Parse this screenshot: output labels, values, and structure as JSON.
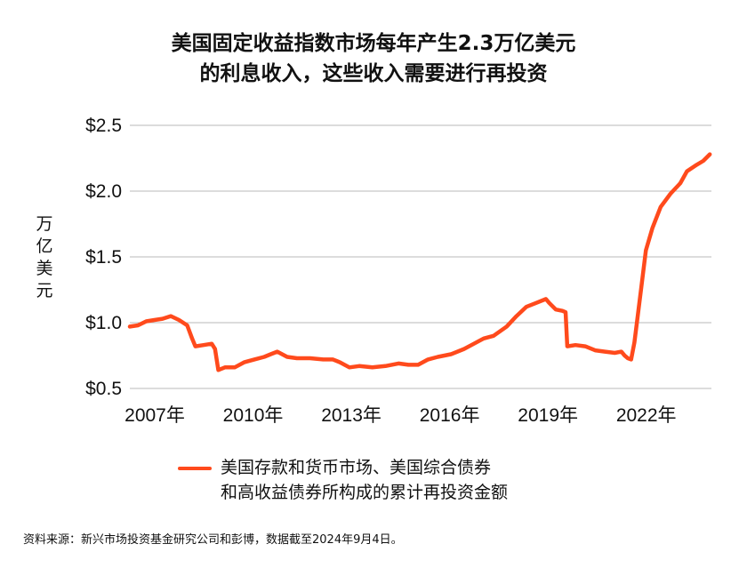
{
  "title": {
    "line1": "美国固定收益指数市场每年产生2.3万亿美元",
    "line2": "的利息收入，这些收入需要进行再投资"
  },
  "y_axis_label": [
    "万",
    "亿",
    "美",
    "元"
  ],
  "legend": {
    "line1": "美国存款和货币市场、美国综合债券",
    "line2": "和高收益债券所构成的累计再投资金额"
  },
  "source": "资料来源：新兴市场投资基金研究公司和彭博，数据截至2024年9月4日。",
  "colors": {
    "series": "#ff4a1c",
    "grid": "#b8b8b8",
    "text": "#111111"
  },
  "chart_data": {
    "type": "line",
    "title": "美国固定收益指数市场每年产生2.3万亿美元的利息收入，这些收入需要进行再投资",
    "xlabel": "",
    "ylabel": "万亿美元",
    "xlim": [
      2007.0,
      2024.75
    ],
    "ylim": [
      0.5,
      2.5
    ],
    "y_ticks": [
      0.5,
      1.0,
      1.5,
      2.0,
      2.5
    ],
    "y_tick_labels": [
      "$0.5",
      "$1.0",
      "$1.5",
      "$2.0",
      "$2.5"
    ],
    "x_ticks": [
      2007,
      2010,
      2013,
      2016,
      2019,
      2022
    ],
    "x_tick_labels": [
      "2007年",
      "2010年",
      "2013年",
      "2016年",
      "2019年",
      "2022年"
    ],
    "grid": true,
    "series": [
      {
        "name": "美国存款和货币市场、美国综合债券和高收益债券所构成的累计再投资金额",
        "x": [
          2007.0,
          2007.25,
          2007.5,
          2007.75,
          2008.0,
          2008.25,
          2008.5,
          2008.75,
          2008.9,
          2009.0,
          2009.25,
          2009.5,
          2009.6,
          2009.7,
          2009.9,
          2010.2,
          2010.5,
          2010.8,
          2011.1,
          2011.3,
          2011.5,
          2011.8,
          2012.1,
          2012.5,
          2012.9,
          2013.2,
          2013.4,
          2013.7,
          2014.0,
          2014.4,
          2014.8,
          2015.2,
          2015.5,
          2015.8,
          2016.1,
          2016.4,
          2016.8,
          2017.2,
          2017.5,
          2017.8,
          2018.1,
          2018.5,
          2018.8,
          2019.1,
          2019.4,
          2019.7,
          2019.8,
          2020.0,
          2020.2,
          2020.3,
          2020.35,
          2020.6,
          2020.9,
          2021.2,
          2021.5,
          2021.8,
          2022.0,
          2022.1,
          2022.2,
          2022.3,
          2022.4,
          2022.5,
          2022.6,
          2022.75,
          2022.95,
          2023.2,
          2023.5,
          2023.8,
          2024.0,
          2024.3,
          2024.5,
          2024.7
        ],
        "values": [
          0.97,
          0.98,
          1.01,
          1.02,
          1.03,
          1.05,
          1.02,
          0.98,
          0.88,
          0.82,
          0.83,
          0.84,
          0.8,
          0.64,
          0.66,
          0.66,
          0.7,
          0.72,
          0.74,
          0.76,
          0.78,
          0.74,
          0.73,
          0.73,
          0.72,
          0.72,
          0.7,
          0.66,
          0.67,
          0.66,
          0.67,
          0.69,
          0.68,
          0.68,
          0.72,
          0.74,
          0.76,
          0.8,
          0.84,
          0.88,
          0.9,
          0.97,
          1.05,
          1.12,
          1.15,
          1.18,
          1.15,
          1.1,
          1.09,
          1.08,
          0.82,
          0.83,
          0.82,
          0.79,
          0.78,
          0.77,
          0.78,
          0.75,
          0.73,
          0.72,
          0.85,
          1.05,
          1.25,
          1.55,
          1.72,
          1.88,
          1.98,
          2.06,
          2.15,
          2.2,
          2.23,
          2.28
        ]
      }
    ]
  }
}
